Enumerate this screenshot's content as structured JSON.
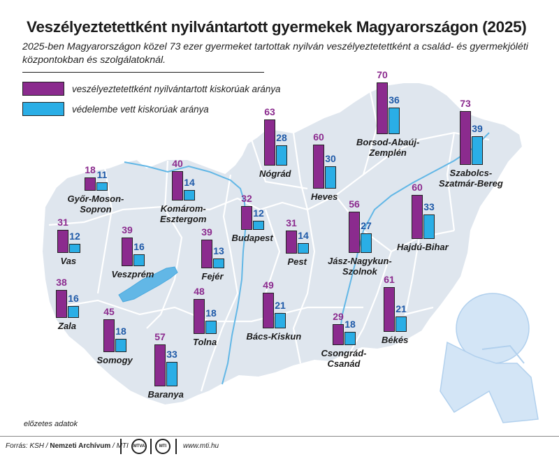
{
  "title": "Veszélyeztetettként nyilvántartott gyermekek Magyarországon (2025)",
  "subtitle": "2025-ben Magyarországon közel 73 ezer gyermeket tartottak nyilván veszélyeztetettként a család- és gyermekjóléti központokban és szolgálatoknál.",
  "legend": {
    "a": "veszélyeztetettként nyilvántartott kiskorúak aránya",
    "b": "védelembe vett kiskorúak aránya"
  },
  "colors": {
    "a": "#8b2b8e",
    "b": "#2aaee6",
    "a_text": "#8b2b8e",
    "b_text": "#1f5aa8",
    "map_fill": "#dfe6ee",
    "water": "#62b7e6"
  },
  "chart_data": {
    "type": "bar",
    "series": [
      {
        "name": "veszélyeztetettként nyilvántartott kiskorúak aránya"
      },
      {
        "name": "védelembe vett kiskorúak aránya"
      }
    ],
    "counties": [
      {
        "name": "Győr-Moson-\nSopron",
        "a": 18,
        "b": 11
      },
      {
        "name": "Komárom-\nEsztergom",
        "a": 40,
        "b": 14
      },
      {
        "name": "Nógrád",
        "a": 63,
        "b": 28
      },
      {
        "name": "Borsod-Abaúj-\nZemplén",
        "a": 70,
        "b": 36
      },
      {
        "name": "Szabolcs-\nSzatmár-Bereg",
        "a": 73,
        "b": 39
      },
      {
        "name": "Heves",
        "a": 60,
        "b": 30
      },
      {
        "name": "Budapest",
        "a": 32,
        "b": 12
      },
      {
        "name": "Vas",
        "a": 31,
        "b": 12
      },
      {
        "name": "Veszprém",
        "a": 39,
        "b": 16
      },
      {
        "name": "Fejér",
        "a": 39,
        "b": 13
      },
      {
        "name": "Pest",
        "a": 31,
        "b": 14
      },
      {
        "name": "Jász-Nagykun-\nSzolnok",
        "a": 56,
        "b": 27
      },
      {
        "name": "Hajdú-Bihar",
        "a": 60,
        "b": 33
      },
      {
        "name": "Zala",
        "a": 38,
        "b": 16
      },
      {
        "name": "Somogy",
        "a": 45,
        "b": 18
      },
      {
        "name": "Tolna",
        "a": 48,
        "b": 18
      },
      {
        "name": "Bács-Kiskun",
        "a": 49,
        "b": 21
      },
      {
        "name": "Csongrád-\nCsanád",
        "a": 29,
        "b": 18
      },
      {
        "name": "Békés",
        "a": 61,
        "b": 21
      },
      {
        "name": "Baranya",
        "a": 57,
        "b": 33
      }
    ]
  },
  "note": "előzetes adatok",
  "footer": {
    "source_prefix": "Forrás: KSH / ",
    "source_bold": "Nemzeti Archívum",
    "source_suffix": " / MTI",
    "logo1": "MTVA",
    "logo2": "MTI",
    "site": "www.mti.hu"
  }
}
